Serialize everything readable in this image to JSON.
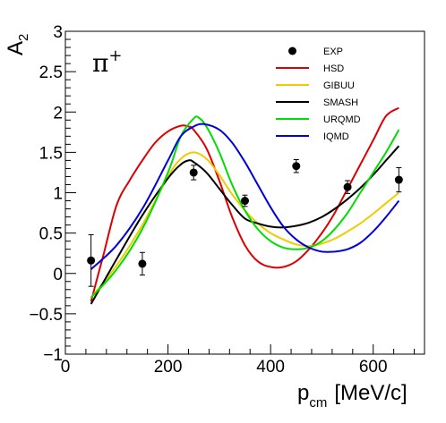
{
  "chart_data": {
    "type": "line",
    "title": "",
    "xlabel": "p",
    "xlabel_sub": "cm",
    "xlabel_unit": "[MeV/c]",
    "ylabel": "A",
    "ylabel_sub": "2",
    "annotation": "π",
    "annotation_sup": "+",
    "xlim": [
      0,
      700
    ],
    "ylim": [
      -1,
      3
    ],
    "xticks": [
      0,
      200,
      400,
      600
    ],
    "xtick_labels": [
      "0",
      "200",
      "400",
      "600"
    ],
    "yticks": [
      -1,
      -0.5,
      0,
      0.5,
      1,
      1.5,
      2,
      2.5,
      3
    ],
    "ytick_labels": [
      "−1",
      "−0.5",
      "0",
      "0.5",
      "1",
      "1.5",
      "2",
      "2.5",
      "3"
    ],
    "grid": false,
    "legend_position": "top-right",
    "experiment": {
      "name": "EXP",
      "color": "#000000",
      "points": [
        {
          "x": 50,
          "y": 0.16,
          "err": 0.32
        },
        {
          "x": 150,
          "y": 0.12,
          "err": 0.14
        },
        {
          "x": 250,
          "y": 1.25,
          "err": 0.09
        },
        {
          "x": 350,
          "y": 0.9,
          "err": 0.07
        },
        {
          "x": 450,
          "y": 1.33,
          "err": 0.08
        },
        {
          "x": 550,
          "y": 1.07,
          "err": 0.08
        },
        {
          "x": 650,
          "y": 1.16,
          "err": 0.15
        }
      ]
    },
    "series": [
      {
        "name": "HSD",
        "color": "#dd0000",
        "x": [
          50,
          75,
          100,
          125,
          150,
          175,
          200,
          225,
          240,
          250,
          275,
          300,
          325,
          350,
          375,
          400,
          425,
          450,
          475,
          500,
          525,
          550,
          575,
          600,
          625,
          650
        ],
        "y": [
          -0.35,
          0.25,
          0.85,
          1.15,
          1.4,
          1.62,
          1.76,
          1.83,
          1.82,
          1.78,
          1.55,
          1.15,
          0.7,
          0.35,
          0.15,
          0.08,
          0.08,
          0.15,
          0.3,
          0.5,
          0.75,
          1.05,
          1.35,
          1.65,
          1.95,
          2.05
        ]
      },
      {
        "name": "GIBUU",
        "color": "#eecc00",
        "x": [
          50,
          100,
          150,
          200,
          225,
          250,
          275,
          300,
          325,
          350,
          375,
          400,
          425,
          450,
          475,
          500,
          525,
          550,
          575,
          600,
          625,
          650
        ],
        "y": [
          -0.3,
          0.1,
          0.6,
          1.2,
          1.42,
          1.5,
          1.42,
          1.22,
          0.98,
          0.78,
          0.62,
          0.5,
          0.42,
          0.36,
          0.34,
          0.37,
          0.43,
          0.52,
          0.62,
          0.74,
          0.87,
          1.0
        ]
      },
      {
        "name": "SMASH",
        "color": "#000000",
        "x": [
          50,
          100,
          150,
          200,
          225,
          240,
          250,
          275,
          300,
          325,
          350,
          375,
          400,
          425,
          450,
          475,
          500,
          525,
          550,
          575,
          600,
          625,
          650
        ],
        "y": [
          -0.38,
          0.18,
          0.72,
          1.18,
          1.35,
          1.4,
          1.38,
          1.25,
          1.05,
          0.85,
          0.68,
          0.62,
          0.58,
          0.57,
          0.59,
          0.63,
          0.7,
          0.8,
          0.92,
          1.06,
          1.22,
          1.4,
          1.58
        ]
      },
      {
        "name": "URQMD",
        "color": "#00dd00",
        "x": [
          50,
          100,
          150,
          200,
          225,
          250,
          260,
          275,
          300,
          325,
          350,
          375,
          400,
          425,
          450,
          475,
          500,
          525,
          550,
          575,
          600,
          625,
          650
        ],
        "y": [
          -0.3,
          0.05,
          0.55,
          1.25,
          1.7,
          1.92,
          1.93,
          1.82,
          1.5,
          1.1,
          0.78,
          0.55,
          0.4,
          0.32,
          0.3,
          0.32,
          0.4,
          0.55,
          0.75,
          1.0,
          1.25,
          1.5,
          1.78
        ]
      },
      {
        "name": "IQMD",
        "color": "#0000dd",
        "x": [
          50,
          100,
          150,
          200,
          225,
          250,
          270,
          300,
          325,
          350,
          375,
          400,
          425,
          450,
          475,
          500,
          525,
          550,
          575,
          600,
          625,
          650
        ],
        "y": [
          0.05,
          0.35,
          0.8,
          1.4,
          1.7,
          1.82,
          1.85,
          1.78,
          1.62,
          1.38,
          1.1,
          0.82,
          0.58,
          0.42,
          0.32,
          0.27,
          0.27,
          0.3,
          0.38,
          0.52,
          0.7,
          0.9
        ]
      }
    ]
  }
}
